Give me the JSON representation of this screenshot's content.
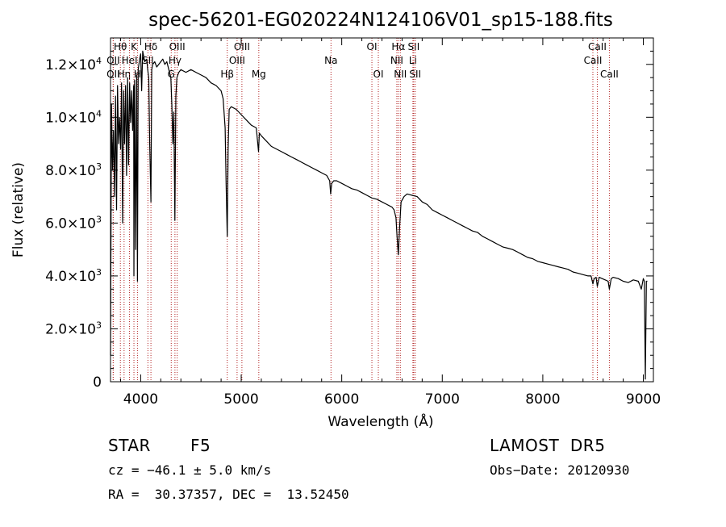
{
  "chart_data": {
    "type": "line",
    "title": "spec-56201-EG020224N124106V01_sp15-188.fits",
    "xlabel": "Wavelength (Å)",
    "ylabel": "Flux (relative)",
    "xlim": [
      3700,
      9100
    ],
    "ylim": [
      0,
      13000
    ],
    "x_ticks": [
      {
        "value": 4000,
        "label": "4000"
      },
      {
        "value": 5000,
        "label": "5000"
      },
      {
        "value": 6000,
        "label": "6000"
      },
      {
        "value": 7000,
        "label": "7000"
      },
      {
        "value": 8000,
        "label": "8000"
      },
      {
        "value": 9000,
        "label": "9000"
      }
    ],
    "y_ticks": [
      {
        "value": 0,
        "mant": "0",
        "exp": ""
      },
      {
        "value": 2000,
        "mant": "2.0×10",
        "exp": "3"
      },
      {
        "value": 4000,
        "mant": "4.0×10",
        "exp": "3"
      },
      {
        "value": 6000,
        "mant": "6.0×10",
        "exp": "3"
      },
      {
        "value": 8000,
        "mant": "8.0×10",
        "exp": "3"
      },
      {
        "value": 10000,
        "mant": "1.0×10",
        "exp": "4"
      },
      {
        "value": 12000,
        "mant": "1.2×10",
        "exp": "4"
      }
    ],
    "grid": false,
    "line_color": "#000000",
    "marker_color": "#b22222",
    "series": [
      {
        "x": [
          3700,
          3710,
          3720,
          3730,
          3740,
          3750,
          3760,
          3770,
          3780,
          3790,
          3800,
          3810,
          3820,
          3830,
          3840,
          3850,
          3860,
          3870,
          3880,
          3890,
          3900,
          3910,
          3920,
          3930,
          3933,
          3940,
          3950,
          3960,
          3968,
          3975,
          3990,
          4000,
          4010,
          4020,
          4040,
          4060,
          4070,
          4080,
          4090,
          4102,
          4110,
          4120,
          4140,
          4160,
          4180,
          4200,
          4220,
          4240,
          4260,
          4280,
          4300,
          4310,
          4320,
          4330,
          4340,
          4350,
          4360,
          4380,
          4400,
          4450,
          4500,
          4550,
          4600,
          4650,
          4700,
          4750,
          4800,
          4820,
          4840,
          4850,
          4861,
          4870,
          4880,
          4900,
          4950,
          5000,
          5050,
          5100,
          5150,
          5172,
          5180,
          5200,
          5250,
          5300,
          5350,
          5400,
          5450,
          5500,
          5550,
          5600,
          5650,
          5700,
          5750,
          5800,
          5850,
          5880,
          5890,
          5900,
          5920,
          5950,
          6000,
          6050,
          6100,
          6150,
          6200,
          6250,
          6300,
          6350,
          6400,
          6450,
          6500,
          6520,
          6540,
          6550,
          6563,
          6575,
          6590,
          6620,
          6650,
          6700,
          6750,
          6800,
          6850,
          6900,
          6950,
          7000,
          7050,
          7100,
          7150,
          7200,
          7250,
          7300,
          7350,
          7400,
          7450,
          7500,
          7550,
          7600,
          7650,
          7700,
          7750,
          7800,
          7850,
          7900,
          7950,
          8000,
          8050,
          8100,
          8150,
          8200,
          8250,
          8300,
          8350,
          8400,
          8450,
          8480,
          8498,
          8510,
          8530,
          8542,
          8560,
          8590,
          8620,
          8650,
          8662,
          8680,
          8700,
          8750,
          8800,
          8850,
          8900,
          8950,
          8980,
          9000,
          9010,
          9020,
          9030,
          9040
        ],
        "y": [
          1000,
          10500,
          8000,
          9500,
          7000,
          10800,
          6500,
          11200,
          9000,
          10000,
          8800,
          11300,
          6000,
          11000,
          9000,
          11200,
          7800,
          11500,
          8200,
          11300,
          9800,
          11000,
          9500,
          11200,
          4000,
          11400,
          5000,
          11600,
          3800,
          11800,
          12200,
          12400,
          11000,
          12500,
          12100,
          12200,
          11800,
          11500,
          9000,
          6800,
          11800,
          12000,
          12100,
          11900,
          12000,
          12100,
          12200,
          12000,
          12100,
          11800,
          11500,
          10500,
          9000,
          10200,
          6100,
          10800,
          11500,
          11700,
          11800,
          11700,
          11800,
          11700,
          11600,
          11500,
          11300,
          11200,
          11000,
          10700,
          9600,
          7500,
          5500,
          8800,
          10300,
          10400,
          10300,
          10100,
          9900,
          9700,
          9600,
          8700,
          9400,
          9300,
          9100,
          8900,
          8800,
          8700,
          8600,
          8500,
          8400,
          8300,
          8200,
          8100,
          8000,
          7900,
          7800,
          7600,
          7100,
          7500,
          7600,
          7600,
          7500,
          7400,
          7300,
          7250,
          7150,
          7050,
          6950,
          6900,
          6800,
          6700,
          6600,
          6500,
          6200,
          5500,
          4800,
          5800,
          6800,
          7000,
          7100,
          7050,
          7000,
          6800,
          6700,
          6500,
          6400,
          6300,
          6200,
          6100,
          6000,
          5900,
          5800,
          5700,
          5650,
          5500,
          5400,
          5300,
          5200,
          5100,
          5050,
          5000,
          4900,
          4800,
          4700,
          4650,
          4550,
          4500,
          4450,
          4400,
          4350,
          4300,
          4250,
          4150,
          4100,
          4050,
          4000,
          4000,
          3700,
          3900,
          3950,
          3600,
          3950,
          3900,
          3850,
          3800,
          3500,
          3900,
          3950,
          3900,
          3800,
          3750,
          3850,
          3800,
          3500,
          3900,
          3800,
          100,
          3800,
          3800
        ]
      }
    ],
    "lines": [
      {
        "x": 3727,
        "label": "OII",
        "row": 3
      },
      {
        "x": 3727,
        "label": "OII",
        "row": 2
      },
      {
        "x": 3798,
        "label": "Hθ",
        "row": 1
      },
      {
        "x": 3835,
        "label": "Hη",
        "row": 3
      },
      {
        "x": 3889,
        "label": "HeI",
        "row": 2
      },
      {
        "x": 3933,
        "label": "K",
        "row": 1
      },
      {
        "x": 3968,
        "label": "H",
        "row": 3
      },
      {
        "x": 4072,
        "label": "SII",
        "row": 2
      },
      {
        "x": 4102,
        "label": "Hδ",
        "row": 1
      },
      {
        "x": 4304,
        "label": "G",
        "row": 3
      },
      {
        "x": 4341,
        "label": "Hγ",
        "row": 2
      },
      {
        "x": 4363,
        "label": "OIII",
        "row": 1
      },
      {
        "x": 4861,
        "label": "Hβ",
        "row": 3
      },
      {
        "x": 4959,
        "label": "OIII",
        "row": 2
      },
      {
        "x": 5007,
        "label": "OIII",
        "row": 1
      },
      {
        "x": 5175,
        "label": "Mg",
        "row": 3
      },
      {
        "x": 5893,
        "label": "Na",
        "row": 2
      },
      {
        "x": 6300,
        "label": "OI",
        "row": 1
      },
      {
        "x": 6364,
        "label": "OI",
        "row": 3
      },
      {
        "x": 6548,
        "label": "NII",
        "row": 2
      },
      {
        "x": 6563,
        "label": "Hα",
        "row": 1
      },
      {
        "x": 6583,
        "label": "NII",
        "row": 3
      },
      {
        "x": 6708,
        "label": "Li",
        "row": 2
      },
      {
        "x": 6716,
        "label": "SII",
        "row": 1
      },
      {
        "x": 6731,
        "label": "SII",
        "row": 3
      },
      {
        "x": 8498,
        "label": "CaII",
        "row": 2
      },
      {
        "x": 8542,
        "label": "CaII",
        "row": 1
      },
      {
        "x": 8662,
        "label": "CaII",
        "row": 3
      }
    ]
  },
  "info": {
    "class_label": "STAR",
    "subclass": "F5",
    "survey": "LAMOST  DR5",
    "cz": "cz = −46.1 ± 5.0 km/s",
    "obs_date": "Obs−Date: 20120930",
    "coords": "RA =  30.37357, DEC =  13.52450"
  }
}
